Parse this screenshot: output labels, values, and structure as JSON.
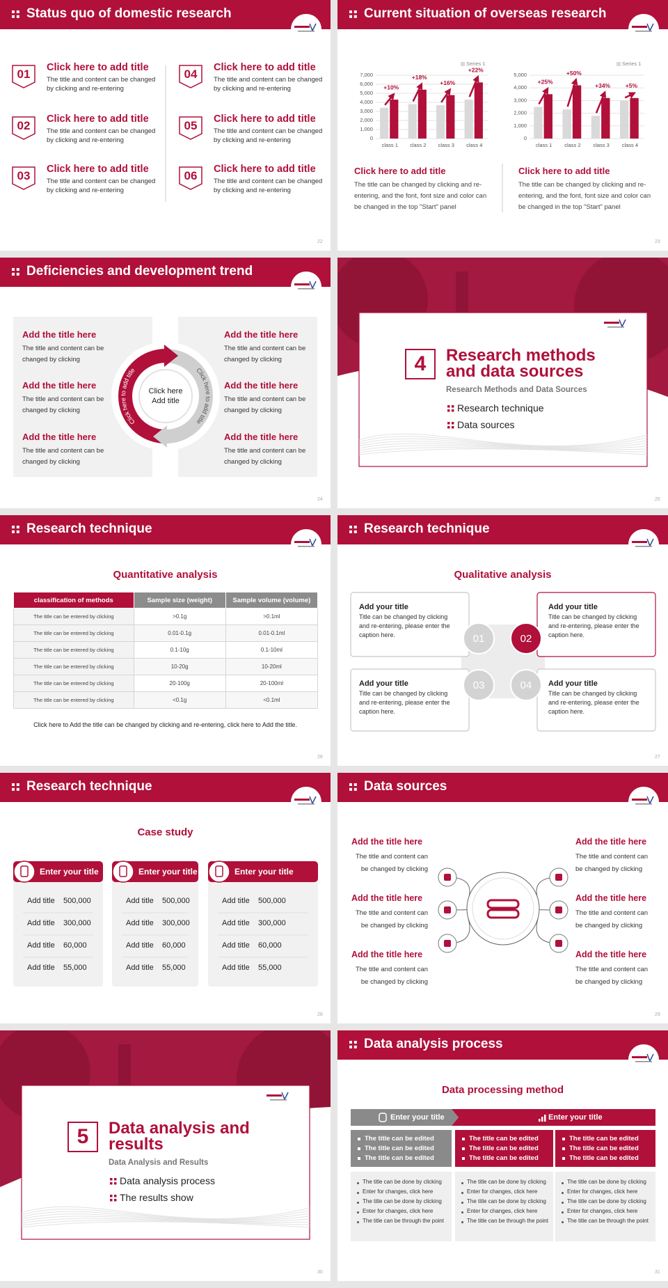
{
  "chart_data": [
    {
      "type": "bar",
      "categories": [
        "class 1",
        "class 2",
        "class 3",
        "class 4"
      ],
      "series": [
        {
          "name": "Series 1",
          "color": "#d9d9d9",
          "values": [
            3400,
            3800,
            3700,
            4300
          ]
        },
        {
          "color": "#b0103a",
          "values": [
            4300,
            5400,
            4800,
            6200
          ]
        }
      ],
      "annotations": [
        "+10%",
        "+18%",
        "+16%",
        "+22%"
      ],
      "ylim": [
        0,
        7000
      ],
      "yticks": [
        0,
        {
          "value": 1000,
          "label": "1,000"
        },
        {
          "value": 2000,
          "label": "2,000"
        },
        {
          "value": 3000,
          "label": "3,000"
        },
        {
          "value": 4000,
          "label": "4,000"
        },
        {
          "value": 5000,
          "label": "5,000"
        },
        {
          "value": 6000,
          "label": "6,000"
        },
        {
          "value": 7000,
          "label": "7,000"
        }
      ],
      "grid": true,
      "legend": "top-right"
    },
    {
      "type": "bar",
      "categories": [
        "class 1",
        "class 2",
        "class 3",
        "class 4"
      ],
      "series": [
        {
          "name": "Series 1",
          "color": "#d9d9d9",
          "values": [
            2500,
            2300,
            1800,
            3000
          ]
        },
        {
          "color": "#b0103a",
          "values": [
            3500,
            4200,
            3200,
            3200
          ]
        }
      ],
      "annotations": [
        "+25%",
        "+50%",
        "+34%",
        "+5%"
      ],
      "ylim": [
        0,
        5000
      ],
      "yticks": [
        0,
        {
          "value": 1000,
          "label": "1,000"
        },
        {
          "value": 2000,
          "label": "2,000"
        },
        {
          "value": 3000,
          "label": "3,000"
        },
        {
          "value": 4000,
          "label": "4,000"
        },
        {
          "value": 5000,
          "label": "5,000"
        }
      ],
      "grid": true,
      "legend": "top-right"
    }
  ],
  "slides": [
    {
      "title": "Status quo of domestic research",
      "page": "22",
      "items": [
        {
          "number": "01",
          "title": "Click here to add title",
          "text": "The title and content can be changed by clicking and re-entering"
        },
        {
          "number": "02",
          "title": "Click here to add title",
          "text": "The title and content can be changed by clicking and re-entering"
        },
        {
          "number": "03",
          "title": "Click here to add title",
          "text": "The title and content can be changed by clicking and re-entering"
        },
        {
          "number": "04",
          "title": "Click here to add title",
          "text": "The title and content can be changed by clicking and re-entering"
        },
        {
          "number": "05",
          "title": "Click here to add title",
          "text": "The title and content can be changed by clicking and re-entering"
        },
        {
          "number": "06",
          "title": "Click here to add title",
          "text": "The title and content can be changed by clicking and re-entering"
        }
      ]
    },
    {
      "title": "Current situation of overseas research",
      "page": "23",
      "captions": [
        {
          "title": "Click here to add title",
          "text": "The title can be changed by clicking and re-entering, and the font, font size and color can be changed in the top \"Start\" panel"
        },
        {
          "title": "Click here to add title",
          "text": "The title can be changed by clicking and re-entering, and the font, font size and color can be changed in the top \"Start\" panel"
        }
      ]
    },
    {
      "title": "Deficiencies and development trend",
      "page": "24",
      "left": [
        {
          "title": "Add the title here",
          "text": "The title and content can be changed by clicking"
        },
        {
          "title": "Add the title here",
          "text": "The title and content can be changed by clicking"
        },
        {
          "title": "Add the title here",
          "text": "The title and content can be changed by clicking"
        }
      ],
      "right": [
        {
          "title": "Add the title here",
          "text": "The title and content can be changed by clicking"
        },
        {
          "title": "Add the title here",
          "text": "The title and content can be changed by clicking"
        },
        {
          "title": "Add the title here",
          "text": "The title and content can be changed by clicking"
        }
      ],
      "center": "Click here Add title",
      "arc_labels": [
        "Click here to add title",
        "Click here to add title"
      ]
    },
    {
      "number": "4",
      "title": "Research methods and data sources",
      "subtitle": "Research Methods and Data Sources",
      "bullets": [
        "Research technique",
        "Data sources"
      ],
      "page": "25"
    },
    {
      "title": "Research technique",
      "subtitle": "Quantitative analysis",
      "page": "26",
      "table": {
        "header": [
          "classification of methods",
          "Sample size (weight)",
          "Sample volume (volume)"
        ],
        "rows": [
          [
            "The title can be entered by clicking",
            ">0.1g",
            ">0.1ml"
          ],
          [
            "The title can be entered by clicking",
            "0.01-0.1g",
            "0.01-0.1ml"
          ],
          [
            "The title can be entered by clicking",
            "0.1-10g",
            "0.1-10ml"
          ],
          [
            "The title can be entered by clicking",
            "10-20g",
            "10-20ml"
          ],
          [
            "The title can be entered by clicking",
            "20-100g",
            "20-100ml"
          ],
          [
            "The title can be entered by clicking",
            "<0.1g",
            "<0.1ml"
          ]
        ]
      },
      "footer": "Click here to Add the title can be changed by clicking and re-entering, click here to Add the title."
    },
    {
      "title": "Research technique",
      "subtitle": "Qualitative analysis",
      "page": "27",
      "boxes": [
        {
          "number": "01",
          "title": "Add your title",
          "text": "Title can be changed by clicking and re-entering, please enter the caption here."
        },
        {
          "number": "02",
          "title": "Add your title",
          "text": "Title can be changed by clicking and re-entering, please enter the caption here."
        },
        {
          "number": "03",
          "title": "Add your title",
          "text": "Title can be changed by clicking and re-entering, please enter the caption here."
        },
        {
          "number": "04",
          "title": "Add your title",
          "text": "Title can be changed by clicking and re-entering, please enter the caption here."
        }
      ]
    },
    {
      "title": "Research technique",
      "subtitle": "Case study",
      "page": "28",
      "cards": [
        {
          "title": "Enter your title",
          "rows": [
            [
              "Add title",
              "500,000"
            ],
            [
              "Add title",
              "300,000"
            ],
            [
              "Add title",
              "60,000"
            ],
            [
              "Add title",
              "55,000"
            ]
          ]
        },
        {
          "title": "Enter your title",
          "rows": [
            [
              "Add title",
              "500,000"
            ],
            [
              "Add title",
              "300,000"
            ],
            [
              "Add title",
              "60,000"
            ],
            [
              "Add title",
              "55,000"
            ]
          ]
        },
        {
          "title": "Enter your title",
          "rows": [
            [
              "Add title",
              "500,000"
            ],
            [
              "Add title",
              "300,000"
            ],
            [
              "Add title",
              "60,000"
            ],
            [
              "Add title",
              "55,000"
            ]
          ]
        }
      ]
    },
    {
      "title": "Data sources",
      "page": "29",
      "left": [
        {
          "title": "Add the title here",
          "text": "The title and content can be changed by clicking"
        },
        {
          "title": "Add the title here",
          "text": "The title and content can be changed by clicking"
        },
        {
          "title": "Add the title here",
          "text": "The title and content can be changed by clicking"
        }
      ],
      "right": [
        {
          "title": "Add the title here",
          "text": "The title and content can be changed by clicking"
        },
        {
          "title": "Add the title here",
          "text": "The title and content can be changed by clicking"
        },
        {
          "title": "Add the title here",
          "text": "The title and content can be changed by clicking"
        }
      ]
    },
    {
      "number": "5",
      "title": "Data analysis and results",
      "subtitle": "Data Analysis and Results",
      "bullets": [
        "Data analysis process",
        "The results show"
      ],
      "page": "30"
    },
    {
      "title": "Data analysis process",
      "subtitle": "Data processing method",
      "page": "31",
      "headers": [
        "Enter your title",
        "Enter your title"
      ],
      "columns": [
        {
          "highlights": [
            "The title can be edited",
            "The title can be edited",
            "The title can be edited"
          ],
          "notes": [
            "The title can be done by clicking",
            "Enter for changes, click here",
            "The title can be done by clicking",
            "Enter for changes, click here",
            "The title can be through the point"
          ]
        },
        {
          "highlights": [
            "The title can be edited",
            "The title can be edited",
            "The title can be edited"
          ],
          "notes": [
            "The title can be done by clicking",
            "Enter for changes, click here",
            "The title can be done by clicking",
            "Enter for changes, click here",
            "The title can be through the point"
          ]
        },
        {
          "highlights": [
            "The title can be edited",
            "The title can be edited",
            "The title can be edited"
          ],
          "notes": [
            "The title can be done by clicking",
            "Enter for changes, click here",
            "The title can be done by clicking",
            "Enter for changes, click here",
            "The title can be through the point"
          ]
        }
      ]
    }
  ]
}
